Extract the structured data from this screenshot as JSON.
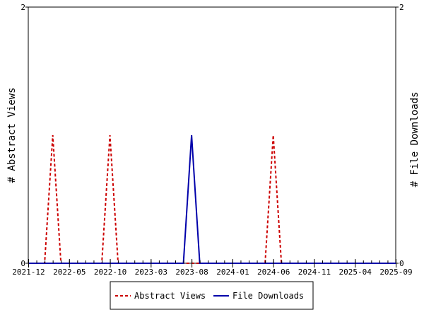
{
  "chart_data": {
    "type": "line",
    "x_ticks": [
      "2021-12",
      "2022-05",
      "2022-10",
      "2023-03",
      "2023-08",
      "2024-01",
      "2024-06",
      "2024-11",
      "2025-04",
      "2025-09"
    ],
    "y_left": {
      "label": "# Abstract Views",
      "range": [
        0,
        2
      ],
      "tick_labels": [
        "0",
        "2"
      ]
    },
    "y_right": {
      "label": "# File Downloads",
      "range": [
        0,
        2
      ],
      "tick_labels": [
        "0",
        "2"
      ]
    },
    "x_range": [
      "2021-12",
      "2025-09"
    ],
    "grid": false,
    "legend_position": "bottom",
    "series": [
      {
        "name": "Abstract Views",
        "axis": "left",
        "color": "#cc0000",
        "style": "dashed",
        "points": [
          {
            "x": "2021-12",
            "y": 0
          },
          {
            "x": "2022-02",
            "y": 0
          },
          {
            "x": "2022-03",
            "y": 1
          },
          {
            "x": "2022-04",
            "y": 0
          },
          {
            "x": "2022-09",
            "y": 0
          },
          {
            "x": "2022-10",
            "y": 1
          },
          {
            "x": "2022-11",
            "y": 0
          },
          {
            "x": "2024-05",
            "y": 0
          },
          {
            "x": "2024-06",
            "y": 1
          },
          {
            "x": "2024-07",
            "y": 0
          },
          {
            "x": "2025-09",
            "y": 0
          }
        ]
      },
      {
        "name": "File Downloads",
        "axis": "right",
        "color": "#0000aa",
        "style": "solid",
        "points": [
          {
            "x": "2021-12",
            "y": 0
          },
          {
            "x": "2023-07",
            "y": 0
          },
          {
            "x": "2023-08",
            "y": 1
          },
          {
            "x": "2023-09",
            "y": 0
          },
          {
            "x": "2025-09",
            "y": 0
          }
        ]
      }
    ]
  }
}
